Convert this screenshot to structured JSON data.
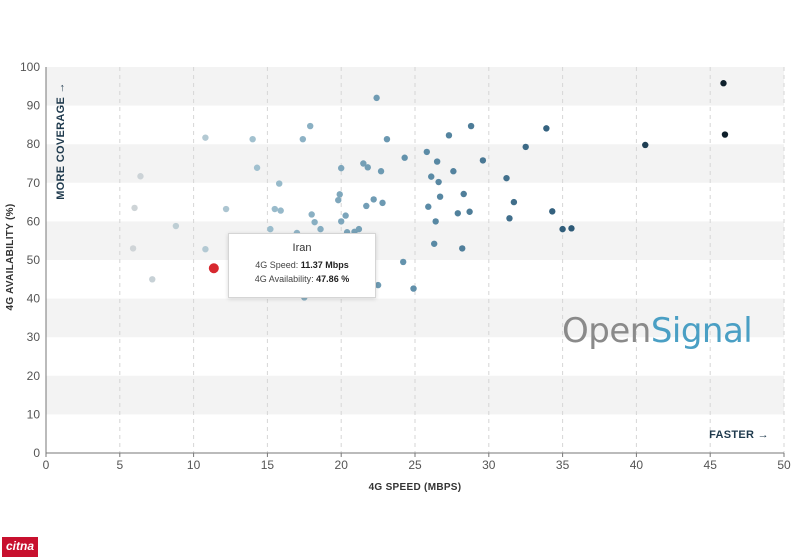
{
  "chart_data": {
    "type": "scatter",
    "xlabel": "4G SPEED (MBPS)",
    "ylabel": "4G AVAILABILITY (%)",
    "xlim": [
      0,
      50
    ],
    "ylim": [
      0,
      100
    ],
    "xticks": [
      0,
      5,
      10,
      15,
      20,
      25,
      30,
      35,
      40,
      45,
      50
    ],
    "yticks": [
      0,
      10,
      20,
      30,
      40,
      50,
      60,
      70,
      80,
      90,
      100
    ],
    "y_direction_label": "MORE COVERAGE →",
    "x_direction_label": "FASTER →",
    "grid": "alternating horizontal bands, dashed vertical lines",
    "color_scale": [
      "#d9d9d9",
      "#9fc0cf",
      "#5f8faa",
      "#2e5b78",
      "#0f1f2b"
    ],
    "highlight_color": "#d7282f",
    "highlight": {
      "name": "Iran",
      "x": 11.37,
      "y": 47.86
    },
    "points": [
      {
        "x": 5.9,
        "y": 53.0
      },
      {
        "x": 6.0,
        "y": 63.5
      },
      {
        "x": 6.4,
        "y": 71.7
      },
      {
        "x": 7.2,
        "y": 45.0
      },
      {
        "x": 8.8,
        "y": 58.8
      },
      {
        "x": 10.8,
        "y": 81.7
      },
      {
        "x": 10.8,
        "y": 52.8
      },
      {
        "x": 12.2,
        "y": 63.2
      },
      {
        "x": 14.0,
        "y": 81.3
      },
      {
        "x": 14.3,
        "y": 73.9
      },
      {
        "x": 15.2,
        "y": 58.0
      },
      {
        "x": 15.5,
        "y": 63.2
      },
      {
        "x": 15.8,
        "y": 69.8
      },
      {
        "x": 15.9,
        "y": 62.8
      },
      {
        "x": 17.0,
        "y": 57.0
      },
      {
        "x": 17.4,
        "y": 81.3
      },
      {
        "x": 17.5,
        "y": 40.3
      },
      {
        "x": 17.9,
        "y": 84.7
      },
      {
        "x": 18.0,
        "y": 61.8
      },
      {
        "x": 18.2,
        "y": 59.8
      },
      {
        "x": 18.6,
        "y": 58.0
      },
      {
        "x": 19.8,
        "y": 65.5
      },
      {
        "x": 19.9,
        "y": 67.0
      },
      {
        "x": 20.0,
        "y": 73.8
      },
      {
        "x": 20.0,
        "y": 60.0
      },
      {
        "x": 20.3,
        "y": 61.5
      },
      {
        "x": 20.4,
        "y": 57.2
      },
      {
        "x": 20.9,
        "y": 57.3
      },
      {
        "x": 21.2,
        "y": 58.0
      },
      {
        "x": 21.5,
        "y": 75.0
      },
      {
        "x": 21.7,
        "y": 64.0
      },
      {
        "x": 21.8,
        "y": 74.0
      },
      {
        "x": 22.2,
        "y": 65.7
      },
      {
        "x": 22.4,
        "y": 92.0
      },
      {
        "x": 22.5,
        "y": 43.5
      },
      {
        "x": 22.7,
        "y": 73.0
      },
      {
        "x": 22.8,
        "y": 64.8
      },
      {
        "x": 23.1,
        "y": 81.3
      },
      {
        "x": 24.2,
        "y": 49.5
      },
      {
        "x": 24.3,
        "y": 76.5
      },
      {
        "x": 24.9,
        "y": 42.6
      },
      {
        "x": 25.8,
        "y": 78.0
      },
      {
        "x": 25.9,
        "y": 63.8
      },
      {
        "x": 26.1,
        "y": 71.6
      },
      {
        "x": 26.3,
        "y": 54.2
      },
      {
        "x": 26.4,
        "y": 60.0
      },
      {
        "x": 26.5,
        "y": 75.5
      },
      {
        "x": 26.6,
        "y": 70.2
      },
      {
        "x": 26.7,
        "y": 66.4
      },
      {
        "x": 27.3,
        "y": 82.3
      },
      {
        "x": 27.6,
        "y": 73.0
      },
      {
        "x": 27.9,
        "y": 62.1
      },
      {
        "x": 28.2,
        "y": 53.0
      },
      {
        "x": 28.3,
        "y": 67.1
      },
      {
        "x": 28.7,
        "y": 62.5
      },
      {
        "x": 28.8,
        "y": 84.7
      },
      {
        "x": 29.6,
        "y": 75.8
      },
      {
        "x": 31.2,
        "y": 71.2
      },
      {
        "x": 31.4,
        "y": 60.8
      },
      {
        "x": 31.7,
        "y": 65.0
      },
      {
        "x": 32.5,
        "y": 79.3
      },
      {
        "x": 33.9,
        "y": 84.1
      },
      {
        "x": 34.3,
        "y": 62.6
      },
      {
        "x": 35.0,
        "y": 58.0
      },
      {
        "x": 35.6,
        "y": 58.2
      },
      {
        "x": 40.6,
        "y": 79.8
      },
      {
        "x": 45.9,
        "y": 95.8
      },
      {
        "x": 46.0,
        "y": 82.5
      }
    ]
  },
  "tooltip": {
    "title": "Iran",
    "speed_label": "4G Speed: ",
    "speed_value": "11.37 Mbps",
    "availability_label": "4G Availability: ",
    "availability_value": "47.86 %"
  },
  "logo": {
    "part1": "Open",
    "part2": "Signal"
  },
  "watermark": "citna"
}
